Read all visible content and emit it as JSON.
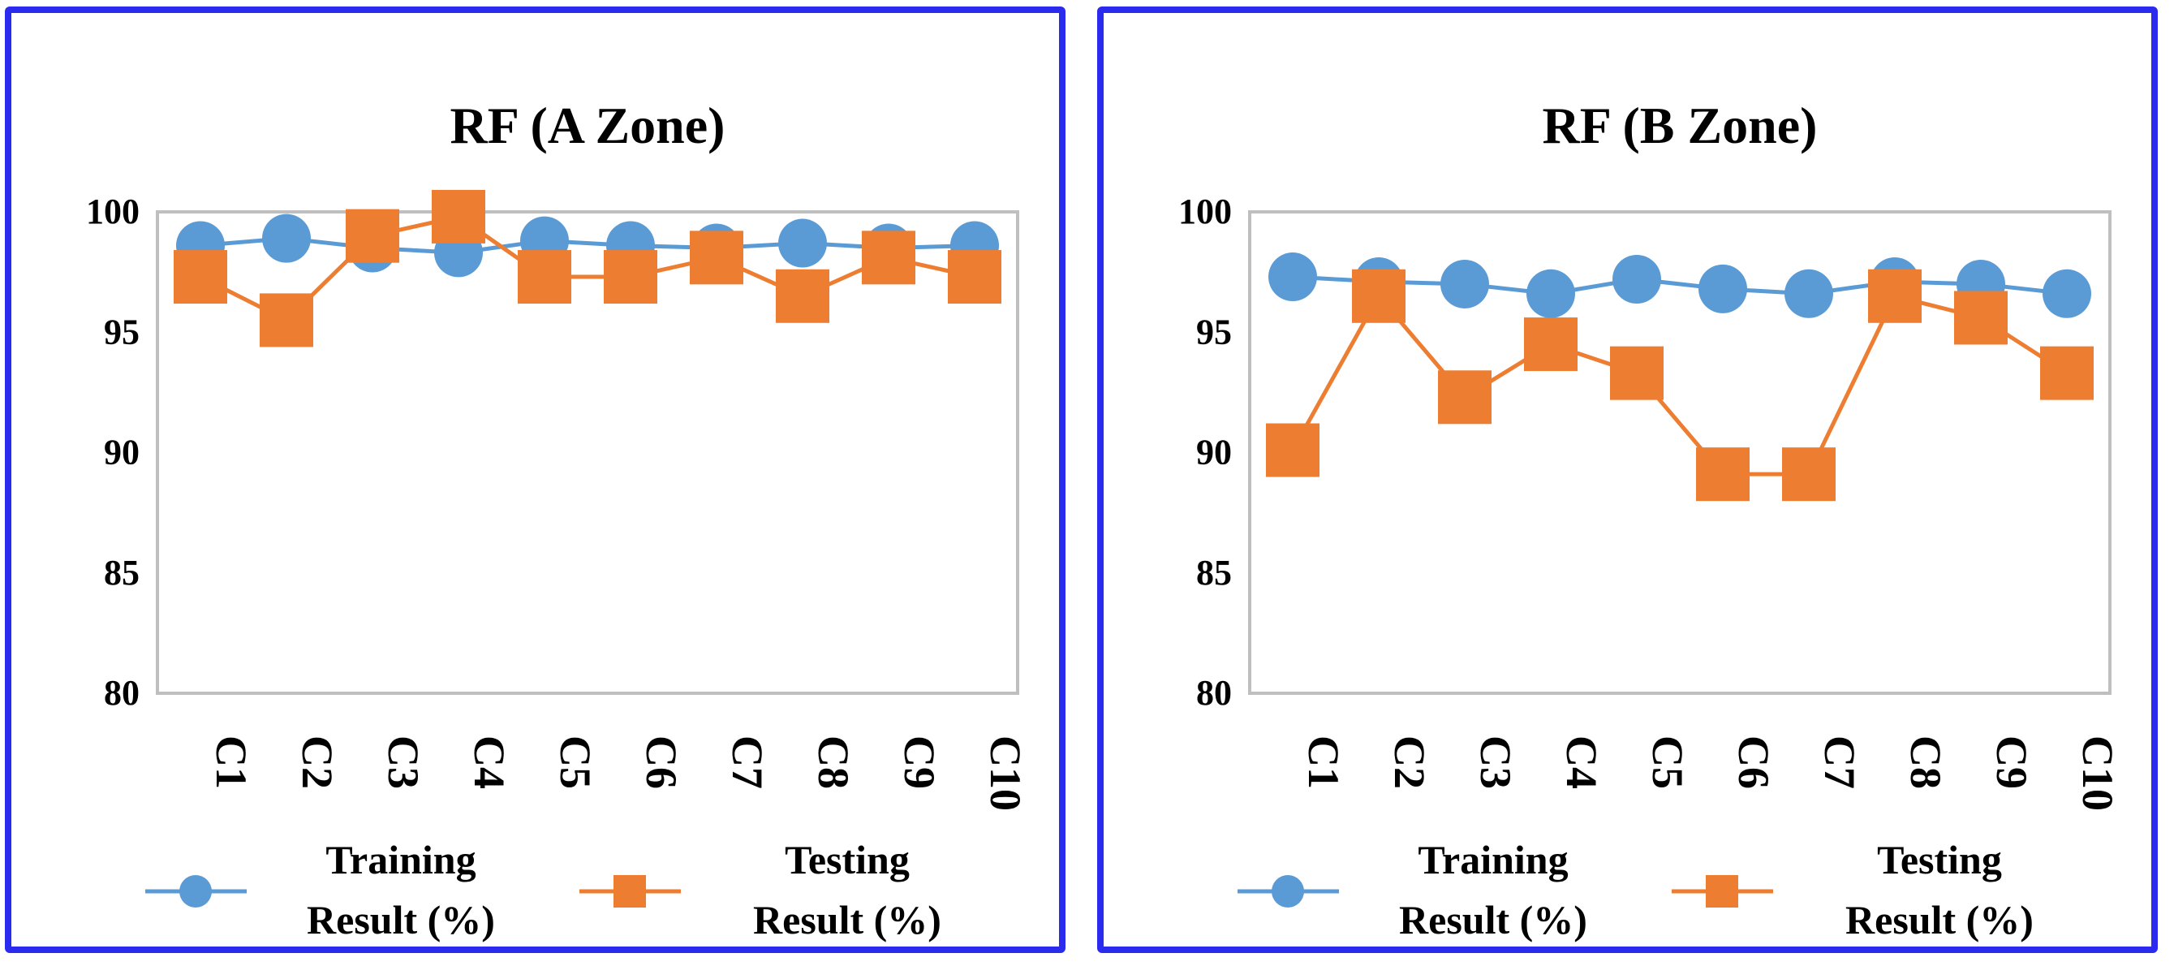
{
  "chart_data": [
    {
      "type": "line",
      "title": "RF (A Zone)",
      "categories": [
        "C1",
        "C2",
        "C3",
        "C4",
        "C5",
        "C6",
        "C7",
        "C8",
        "C9",
        "C10"
      ],
      "ylim": [
        80,
        100
      ],
      "yticks": [
        "80",
        "85",
        "90",
        "95",
        "100"
      ],
      "series": [
        {
          "name": "Training Result (%)",
          "marker": "circle",
          "color": "#5b9bd5",
          "values": [
            98.6,
            98.9,
            98.5,
            98.3,
            98.8,
            98.6,
            98.5,
            98.7,
            98.5,
            98.6
          ]
        },
        {
          "name": "Testing Result (%)",
          "marker": "square",
          "color": "#ed7d31",
          "values": [
            97.3,
            95.5,
            99.0,
            99.8,
            97.3,
            97.3,
            98.1,
            96.5,
            98.1,
            97.3
          ]
        }
      ],
      "legend": [
        {
          "line1": "Training",
          "line2": "Result (%)"
        },
        {
          "line1": "Testing",
          "line2": "Result (%)"
        }
      ]
    },
    {
      "type": "line",
      "title": "RF (B Zone)",
      "categories": [
        "C1",
        "C2",
        "C3",
        "C4",
        "C5",
        "C6",
        "C7",
        "C8",
        "C9",
        "C10"
      ],
      "ylim": [
        80,
        100
      ],
      "yticks": [
        "80",
        "85",
        "90",
        "95",
        "100"
      ],
      "series": [
        {
          "name": "Training Result (%)",
          "marker": "circle",
          "color": "#5b9bd5",
          "values": [
            97.3,
            97.1,
            97.0,
            96.6,
            97.2,
            96.8,
            96.6,
            97.1,
            97.0,
            96.6
          ]
        },
        {
          "name": "Testing Result (%)",
          "marker": "square",
          "color": "#ed7d31",
          "values": [
            90.1,
            96.5,
            92.3,
            94.5,
            93.3,
            89.1,
            89.1,
            96.5,
            95.6,
            93.3
          ]
        }
      ],
      "legend": [
        {
          "line1": "Training",
          "line2": "Result (%)"
        },
        {
          "line1": "Testing",
          "line2": "Result (%)"
        }
      ]
    }
  ]
}
